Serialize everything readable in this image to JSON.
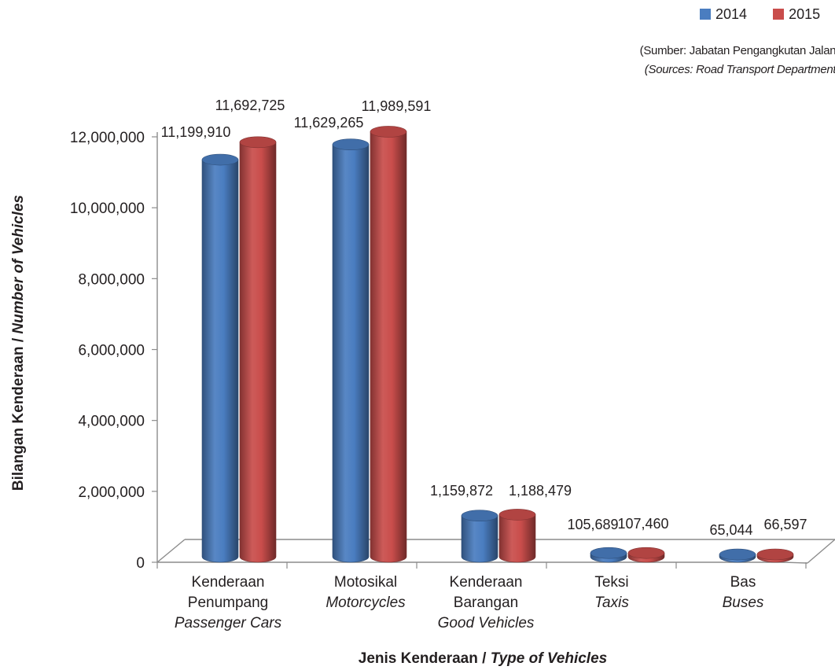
{
  "legend": {
    "series": [
      {
        "name": "2014",
        "color": "#4a7dc0"
      },
      {
        "name": "2015",
        "color": "#c94d4b"
      }
    ]
  },
  "source": {
    "malay": "(Sumber: Jabatan Pengangkutan Jalan)",
    "english": "(Sources: Road Transport Department)"
  },
  "chart_data": {
    "type": "bar",
    "ylabel_ms": "Bilangan Kenderaan / ",
    "ylabel_en": "Number of Vehicles",
    "xlabel_ms": "Jenis Kenderaan / ",
    "xlabel_en": "Type of Vehicles",
    "ylim": [
      0,
      12000000
    ],
    "yticks": [
      "0",
      "2,000,000",
      "4,000,000",
      "6,000,000",
      "8,000,000",
      "10,000,000",
      "12,000,000"
    ],
    "categories": [
      {
        "lines": [
          "Kenderaan",
          "Penumpang"
        ],
        "english": "Passenger Cars"
      },
      {
        "lines": [
          "Motosikal"
        ],
        "english": "Motorcycles"
      },
      {
        "lines": [
          "Kenderaan",
          "Barangan"
        ],
        "english": "Good Vehicles"
      },
      {
        "lines": [
          "Teksi"
        ],
        "english": "Taxis"
      },
      {
        "lines": [
          "Bas"
        ],
        "english": "Buses"
      }
    ],
    "series": [
      {
        "name": "2014",
        "color": "#4a7dc0",
        "values": [
          11199910,
          11629265,
          1159872,
          105689,
          65044
        ],
        "labels": [
          "11,199,910",
          "11,629,265",
          "1,159,872",
          "105,689",
          "65,044"
        ]
      },
      {
        "name": "2015",
        "color": "#c94d4b",
        "values": [
          11692725,
          11989591,
          1188479,
          107460,
          66597
        ],
        "labels": [
          "11,692,725",
          "11,989,591",
          "1,188,479",
          "107,460",
          "66,597"
        ]
      }
    ],
    "grid": false,
    "legend_position": "top-right"
  }
}
